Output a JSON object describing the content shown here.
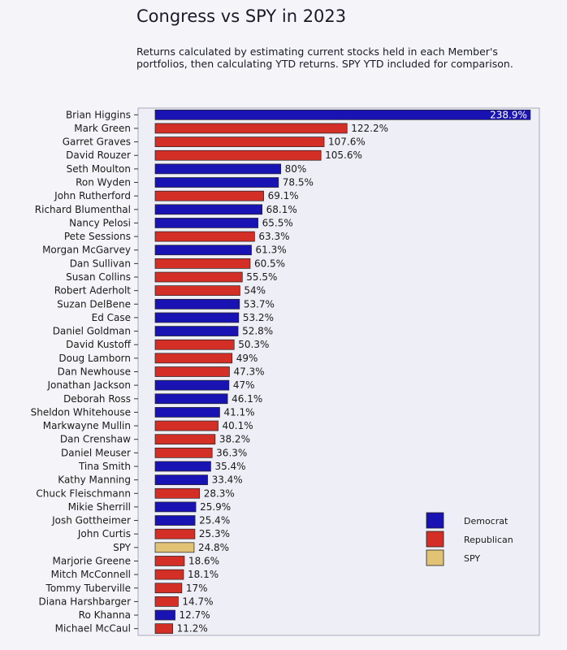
{
  "title": "Congress vs SPY in 2023",
  "subtitle": "Returns calculated by estimating current stocks held in each Member's portfolios, then calculating YTD returns. SPY YTD included for comparison.",
  "colors": {
    "Democrat": "#1a13b3",
    "Republican": "#d42f26",
    "SPY": "#e2c274",
    "plot_background": "#eeeef6"
  },
  "chart_data": {
    "type": "bar",
    "orientation": "horizontal",
    "title": "Congress vs SPY in 2023",
    "xlim": [
      0,
      240
    ],
    "value_suffix": "%",
    "legend": {
      "placement": "right",
      "entries": [
        "Democrat",
        "Republican",
        "SPY"
      ]
    },
    "categories": [
      "Brian Higgins",
      "Mark Green",
      "Garret Graves",
      "David Rouzer",
      "Seth Moulton",
      "Ron Wyden",
      "John Rutherford",
      "Richard Blumenthal",
      "Nancy Pelosi",
      "Pete Sessions",
      "Morgan McGarvey",
      "Dan Sullivan",
      "Susan Collins",
      "Robert Aderholt",
      "Suzan DelBene",
      "Ed Case",
      "Daniel Goldman",
      "David Kustoff",
      "Doug Lamborn",
      "Dan Newhouse",
      "Jonathan Jackson",
      "Deborah Ross",
      "Sheldon Whitehouse",
      "Markwayne Mullin",
      "Dan Crenshaw",
      "Daniel Meuser",
      "Tina Smith",
      "Kathy Manning",
      "Chuck Fleischmann",
      "Mikie Sherrill",
      "Josh Gottheimer",
      "John Curtis",
      "SPY",
      "Marjorie Greene",
      "Mitch McConnell",
      "Tommy Tuberville",
      "Diana Harshbarger",
      "Ro Khanna",
      "Michael McCaul"
    ],
    "values": [
      238.9,
      122.2,
      107.6,
      105.6,
      80,
      78.5,
      69.1,
      68.1,
      65.5,
      63.3,
      61.3,
      60.5,
      55.5,
      54,
      53.7,
      53.2,
      52.8,
      50.3,
      49,
      47.3,
      47,
      46.1,
      41.1,
      40.1,
      38.2,
      36.3,
      35.4,
      33.4,
      28.3,
      25.9,
      25.4,
      25.3,
      24.8,
      18.6,
      18.1,
      17,
      14.7,
      12.7,
      11.2
    ],
    "value_labels": [
      "238.9%",
      "122.2%",
      "107.6%",
      "105.6%",
      "80%",
      "78.5%",
      "69.1%",
      "68.1%",
      "65.5%",
      "63.3%",
      "61.3%",
      "60.5%",
      "55.5%",
      "54%",
      "53.7%",
      "53.2%",
      "52.8%",
      "50.3%",
      "49%",
      "47.3%",
      "47%",
      "46.1%",
      "41.1%",
      "40.1%",
      "38.2%",
      "36.3%",
      "35.4%",
      "33.4%",
      "28.3%",
      "25.9%",
      "25.4%",
      "25.3%",
      "24.8%",
      "18.6%",
      "18.1%",
      "17%",
      "14.7%",
      "12.7%",
      "11.2%"
    ],
    "groups": [
      "Democrat",
      "Republican",
      "Republican",
      "Republican",
      "Democrat",
      "Democrat",
      "Republican",
      "Democrat",
      "Democrat",
      "Republican",
      "Democrat",
      "Republican",
      "Republican",
      "Republican",
      "Democrat",
      "Democrat",
      "Democrat",
      "Republican",
      "Republican",
      "Republican",
      "Democrat",
      "Democrat",
      "Democrat",
      "Republican",
      "Republican",
      "Republican",
      "Democrat",
      "Democrat",
      "Republican",
      "Democrat",
      "Democrat",
      "Republican",
      "SPY",
      "Republican",
      "Republican",
      "Republican",
      "Republican",
      "Democrat",
      "Republican"
    ]
  }
}
